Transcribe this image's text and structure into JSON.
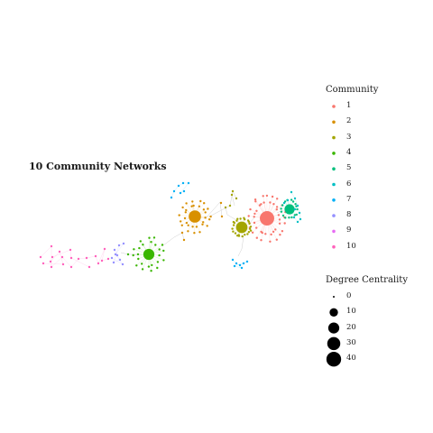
{
  "chart_data": {
    "type": "scatter",
    "subtype": "network-graph",
    "title": "10 Community Networks",
    "legend_placement": "right",
    "grid": false,
    "community_legend": {
      "title": "Community",
      "entries": [
        {
          "label": "1",
          "color": "#F8766D"
        },
        {
          "label": "2",
          "color": "#D89000"
        },
        {
          "label": "3",
          "color": "#A3A500"
        },
        {
          "label": "4",
          "color": "#39B600"
        },
        {
          "label": "5",
          "color": "#00BF7D"
        },
        {
          "label": "6",
          "color": "#00BFC4"
        },
        {
          "label": "7",
          "color": "#00B0F6"
        },
        {
          "label": "8",
          "color": "#9590FF"
        },
        {
          "label": "9",
          "color": "#E76BF3"
        },
        {
          "label": "10",
          "color": "#FF62BC"
        }
      ]
    },
    "degree_legend": {
      "title": "Degree Centrality",
      "entries": [
        {
          "label": "0",
          "value": 0
        },
        {
          "label": "10",
          "value": 10
        },
        {
          "label": "20",
          "value": 20
        },
        {
          "label": "30",
          "value": 30
        },
        {
          "label": "40",
          "value": 40
        }
      ]
    },
    "communities": [
      {
        "community": "1",
        "hub_degree": 38,
        "leaf_nodes": 42,
        "layout": "ring"
      },
      {
        "community": "2",
        "hub_degree": 26,
        "leaf_nodes": 30,
        "layout": "ring"
      },
      {
        "community": "3",
        "hub_degree": 22,
        "leaf_nodes": 24,
        "layout": "ring"
      },
      {
        "community": "4",
        "hub_degree": 20,
        "leaf_nodes": 24,
        "layout": "ring"
      },
      {
        "community": "5",
        "hub_degree": 16,
        "leaf_nodes": 16,
        "layout": "ring"
      },
      {
        "community": "6",
        "hub_degree": 2,
        "leaf_nodes": 10,
        "layout": "chain"
      },
      {
        "community": "7",
        "hub_degree": 2,
        "leaf_nodes": 14,
        "layout": "chain"
      },
      {
        "community": "8",
        "hub_degree": 2,
        "leaf_nodes": 9,
        "layout": "chain"
      },
      {
        "community": "9",
        "hub_degree": 2,
        "leaf_nodes": 0,
        "layout": "chain"
      },
      {
        "community": "10",
        "hub_degree": 2,
        "leaf_nodes": 20,
        "layout": "chain"
      }
    ]
  }
}
